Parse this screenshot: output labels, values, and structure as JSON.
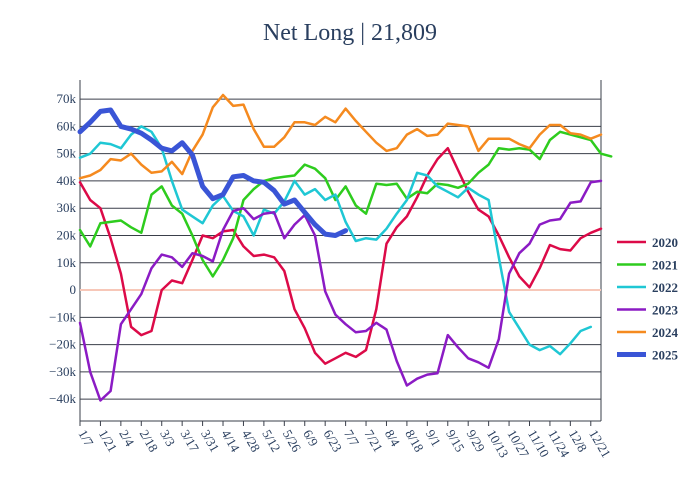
{
  "chart_data": {
    "type": "line",
    "title": "Net Long | 21,809",
    "xlabel": "",
    "ylabel": "",
    "ylim": [
      -48000,
      77000
    ],
    "xlim": [
      1,
      52
    ],
    "grid": true,
    "legend": "right",
    "x_ticks": [
      "1/7",
      "1/21",
      "2/4",
      "2/18",
      "3/3",
      "3/17",
      "3/31",
      "4/14",
      "4/28",
      "5/12",
      "5/26",
      "6/9",
      "6/23",
      "7/7",
      "7/21",
      "8/4",
      "8/18",
      "9/1",
      "9/15",
      "9/29",
      "10/13",
      "10/27",
      "11/10",
      "11/24",
      "12/8",
      "12/21"
    ],
    "y_ticks": [
      -40000,
      -30000,
      -20000,
      -10000,
      0,
      10000,
      20000,
      30000,
      40000,
      50000,
      60000,
      70000
    ],
    "y_tick_labels": [
      "−40k",
      "−30k",
      "−20k",
      "−10k",
      "0",
      "10k",
      "20k",
      "30k",
      "40k",
      "50k",
      "60k",
      "70k"
    ],
    "series": [
      {
        "name": "2020",
        "color": "#dc0a48",
        "width": 2.5,
        "values": [
          39500,
          33000,
          30000,
          19000,
          6000,
          -13500,
          -16500,
          -15000,
          0,
          3500,
          2500,
          11000,
          20000,
          19000,
          21500,
          22000,
          16000,
          12500,
          13000,
          12000,
          7000,
          -7000,
          -14000,
          -23000,
          -27000,
          -25000,
          -23000,
          -24500,
          -22000,
          -7000,
          17000,
          23000,
          27000,
          34000,
          42000,
          48000,
          52000,
          44000,
          36000,
          29500,
          27000,
          20000,
          12000,
          5000,
          1000,
          8000,
          16500,
          15000,
          14500,
          19000,
          21000,
          22500
        ]
      },
      {
        "name": "2021",
        "color": "#2ecc1e",
        "width": 2.5,
        "values": [
          22000,
          16000,
          24500,
          25000,
          25500,
          23000,
          21000,
          35000,
          38000,
          31000,
          28000,
          20000,
          11000,
          5000,
          11000,
          19000,
          33000,
          37000,
          40000,
          41000,
          41500,
          42000,
          46000,
          44500,
          41000,
          33000,
          38000,
          31000,
          28000,
          39000,
          38500,
          39000,
          33500,
          36000,
          35500,
          39000,
          38500,
          37500,
          39000,
          43000,
          46000,
          52000,
          51500,
          52000,
          51500,
          48000,
          55000,
          58000,
          57000,
          56000,
          55000,
          50000,
          49000
        ]
      },
      {
        "name": "2022",
        "color": "#1fc7d4",
        "width": 2.5,
        "values": [
          48500,
          50000,
          54000,
          53500,
          52000,
          57000,
          60000,
          58000,
          52000,
          40000,
          29500,
          27000,
          24500,
          31000,
          34500,
          29000,
          27000,
          20000,
          29500,
          28000,
          32500,
          40000,
          35000,
          37000,
          33000,
          35000,
          25000,
          18000,
          19000,
          18500,
          22500,
          28000,
          33000,
          43000,
          42000,
          38000,
          36000,
          34000,
          37500,
          35000,
          33000,
          12000,
          -8000,
          -14000,
          -20000,
          -22000,
          -20500,
          -23500,
          -19500,
          -15000,
          -13500
        ]
      },
      {
        "name": "2023",
        "color": "#8b1bc4",
        "width": 2.5,
        "values": [
          -12000,
          -30000,
          -40500,
          -37000,
          -12500,
          -7000,
          -1500,
          8000,
          13000,
          12000,
          8500,
          13500,
          12500,
          10500,
          22000,
          29000,
          30000,
          26000,
          28000,
          28500,
          19000,
          24000,
          27500,
          20000,
          -500,
          -9000,
          -12500,
          -15500,
          -15000,
          -12000,
          -14500,
          -26000,
          -35000,
          -32500,
          -31000,
          -30500,
          -16500,
          -21000,
          -25000,
          -26500,
          -28500,
          -18000,
          6000,
          13500,
          17000,
          24000,
          25500,
          26000,
          32000,
          32500,
          39500,
          40000
        ]
      },
      {
        "name": "2024",
        "color": "#f58a1f",
        "width": 2.5,
        "values": [
          41000,
          42000,
          44000,
          48000,
          47500,
          50000,
          46000,
          43000,
          43500,
          47000,
          42500,
          51000,
          57000,
          67000,
          71500,
          67500,
          68000,
          59000,
          52500,
          52500,
          56000,
          61500,
          61500,
          60500,
          63500,
          61500,
          66500,
          62000,
          58000,
          54000,
          51000,
          52000,
          57000,
          59000,
          56500,
          57000,
          61000,
          60500,
          60000,
          51000,
          55500,
          55500,
          55500,
          53500,
          52000,
          57000,
          60500,
          60500,
          57500,
          57000,
          55500,
          57000
        ]
      },
      {
        "name": "2025",
        "color": "#3a55d6",
        "width": 5,
        "values": [
          58000,
          61500,
          65500,
          66000,
          60000,
          59000,
          57500,
          55000,
          52000,
          51000,
          54000,
          49500,
          38000,
          33500,
          35000,
          41500,
          42000,
          40000,
          39500,
          36500,
          31500,
          33000,
          28500,
          24000,
          20500,
          20000,
          21800
        ]
      }
    ]
  }
}
